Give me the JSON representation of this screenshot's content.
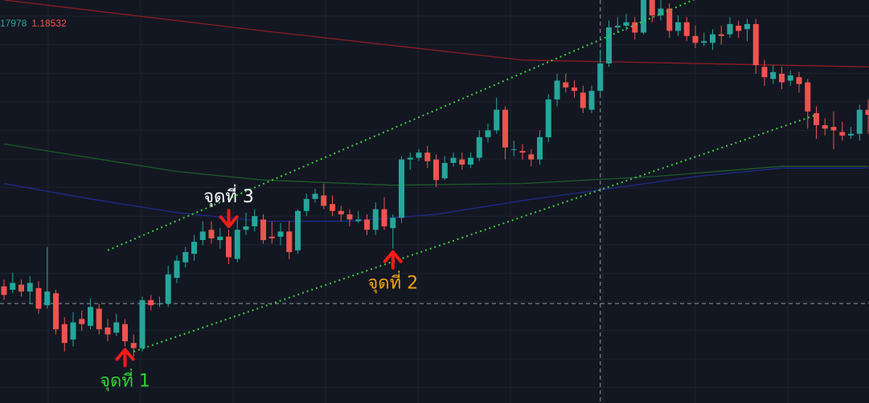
{
  "legend": {
    "value_a": "17978",
    "value_b": "1.18532"
  },
  "colors": {
    "background": "#131722",
    "grid": "#1f2330",
    "up": "#26a69a",
    "down": "#ef5350",
    "ma_red": "#8b1d24",
    "ma_green": "#1c5b2a",
    "ma_blue": "#1f2a8c",
    "trendline": "#3fcc3f",
    "crosshair": "#9598a1",
    "arrow": "#ff1a1a"
  },
  "annotations": [
    {
      "text": "จุดที่ 1",
      "color": "#2fd22f",
      "candle": 14,
      "at": "low",
      "dir": "up"
    },
    {
      "text": "จุดที่ 2",
      "color": "#f2a114",
      "candle": 45,
      "at": "low",
      "dir": "up"
    },
    {
      "text": "จุดที่ 3",
      "color": "#ffffff",
      "candle": 26,
      "at": "high",
      "dir": "down"
    }
  ],
  "chart_data": {
    "type": "candlestick",
    "grid": true,
    "crosshair": {
      "candle": 69,
      "price": 1.1778
    },
    "y_range": [
      1.172,
      1.1955
    ],
    "candles": [
      [
        1.1788,
        1.1783,
        1.1792,
        1.178
      ],
      [
        1.1786,
        1.179,
        1.1796,
        1.1784
      ],
      [
        1.1789,
        1.1785,
        1.1792,
        1.1782
      ],
      [
        1.1785,
        1.179,
        1.1794,
        1.1778
      ],
      [
        1.1787,
        1.1775,
        1.1791,
        1.1772
      ],
      [
        1.1777,
        1.1785,
        1.1811,
        1.1775
      ],
      [
        1.1784,
        1.1763,
        1.1786,
        1.176
      ],
      [
        1.1766,
        1.1755,
        1.177,
        1.175
      ],
      [
        1.1757,
        1.1767,
        1.1773,
        1.1753
      ],
      [
        1.1769,
        1.1766,
        1.1774,
        1.1762
      ],
      [
        1.1765,
        1.1776,
        1.1781,
        1.1763
      ],
      [
        1.1775,
        1.1763,
        1.1778,
        1.176
      ],
      [
        1.1764,
        1.176,
        1.1769,
        1.1756
      ],
      [
        1.1761,
        1.1767,
        1.1772,
        1.1759
      ],
      [
        1.1766,
        1.1756,
        1.1769,
        1.1753
      ],
      [
        1.1755,
        1.1752,
        1.176,
        1.1747
      ],
      [
        1.1752,
        1.178,
        1.1782,
        1.175
      ],
      [
        1.178,
        1.1777,
        1.1783,
        1.1774
      ],
      [
        1.1778,
        1.1778,
        1.1782,
        1.1776
      ],
      [
        1.1778,
        1.1795,
        1.18,
        1.1776
      ],
      [
        1.1793,
        1.1803,
        1.1806,
        1.179
      ],
      [
        1.1802,
        1.1808,
        1.1811,
        1.1799
      ],
      [
        1.1807,
        1.1814,
        1.1818,
        1.1803
      ],
      [
        1.1815,
        1.182,
        1.1826,
        1.1812
      ],
      [
        1.1821,
        1.1816,
        1.1826,
        1.1813
      ],
      [
        1.1815,
        1.1817,
        1.1822,
        1.181
      ],
      [
        1.1817,
        1.1805,
        1.1821,
        1.1801
      ],
      [
        1.1804,
        1.1821,
        1.1827,
        1.1802
      ],
      [
        1.1821,
        1.1823,
        1.1831,
        1.1818
      ],
      [
        1.1823,
        1.1829,
        1.1833,
        1.182
      ],
      [
        1.1827,
        1.1815,
        1.183,
        1.1813
      ],
      [
        1.1817,
        1.1816,
        1.1826,
        1.1813
      ],
      [
        1.1817,
        1.182,
        1.1825,
        1.1812
      ],
      [
        1.182,
        1.1808,
        1.1826,
        1.1804
      ],
      [
        1.1809,
        1.1832,
        1.1833,
        1.1807
      ],
      [
        1.1832,
        1.1839,
        1.1842,
        1.1829
      ],
      [
        1.1839,
        1.1842,
        1.1845,
        1.1837
      ],
      [
        1.1841,
        1.1835,
        1.1848,
        1.1833
      ],
      [
        1.1836,
        1.1832,
        1.1841,
        1.1829
      ],
      [
        1.1832,
        1.183,
        1.1835,
        1.1826
      ],
      [
        1.183,
        1.1827,
        1.1833,
        1.1823
      ],
      [
        1.1826,
        1.1827,
        1.1832,
        1.1825
      ],
      [
        1.1827,
        1.1821,
        1.183,
        1.1818
      ],
      [
        1.1821,
        1.1833,
        1.1837,
        1.1818
      ],
      [
        1.1833,
        1.1823,
        1.184,
        1.1821
      ],
      [
        1.1822,
        1.1828,
        1.183,
        1.181
      ],
      [
        1.1828,
        1.1862,
        1.1864,
        1.1825
      ],
      [
        1.1862,
        1.1863,
        1.1866,
        1.1856
      ],
      [
        1.1863,
        1.1866,
        1.1868,
        1.1861
      ],
      [
        1.1866,
        1.1861,
        1.187,
        1.1857
      ],
      [
        1.1862,
        1.185,
        1.1865,
        1.1846
      ],
      [
        1.1851,
        1.186,
        1.1864,
        1.185
      ],
      [
        1.186,
        1.1863,
        1.1866,
        1.1858
      ],
      [
        1.1862,
        1.1859,
        1.1866,
        1.1856
      ],
      [
        1.1859,
        1.1863,
        1.1866,
        1.1857
      ],
      [
        1.1863,
        1.1875,
        1.1879,
        1.1861
      ],
      [
        1.1875,
        1.1879,
        1.1883,
        1.1872
      ],
      [
        1.1879,
        1.1891,
        1.1898,
        1.1877
      ],
      [
        1.1891,
        1.1869,
        1.1893,
        1.1862
      ],
      [
        1.1868,
        1.1868,
        1.1873,
        1.1864
      ],
      [
        1.1867,
        1.1866,
        1.1871,
        1.1862
      ],
      [
        1.1865,
        1.1862,
        1.1868,
        1.1858
      ],
      [
        1.1862,
        1.1875,
        1.1879,
        1.1859
      ],
      [
        1.1875,
        1.1897,
        1.19,
        1.1872
      ],
      [
        1.1897,
        1.1908,
        1.1912,
        1.1893
      ],
      [
        1.1907,
        1.1904,
        1.1912,
        1.1901
      ],
      [
        1.1904,
        1.1902,
        1.1908,
        1.1898
      ],
      [
        1.1901,
        1.1892,
        1.1905,
        1.1889
      ],
      [
        1.1891,
        1.1902,
        1.1905,
        1.1889
      ],
      [
        1.1902,
        1.1918,
        1.1926,
        1.19
      ],
      [
        1.1918,
        1.1939,
        1.1943,
        1.1916
      ],
      [
        1.1939,
        1.194,
        1.1945,
        1.1936
      ],
      [
        1.194,
        1.1942,
        1.1947,
        1.1937
      ],
      [
        1.1942,
        1.1936,
        1.1945,
        1.1932
      ],
      [
        1.1936,
        1.1955,
        1.1958,
        1.1935
      ],
      [
        1.1955,
        1.1946,
        1.1957,
        1.1942
      ],
      [
        1.1946,
        1.195,
        1.1955,
        1.1943
      ],
      [
        1.195,
        1.1937,
        1.1953,
        1.1933
      ],
      [
        1.1937,
        1.1942,
        1.1946,
        1.1934
      ],
      [
        1.1942,
        1.1934,
        1.1945,
        1.1931
      ],
      [
        1.1934,
        1.193,
        1.194,
        1.1927
      ],
      [
        1.193,
        1.1931,
        1.1936,
        1.1928
      ],
      [
        1.193,
        1.1935,
        1.1938,
        1.1926
      ],
      [
        1.1935,
        1.1934,
        1.194,
        1.1929
      ],
      [
        1.1935,
        1.1941,
        1.1945,
        1.1933
      ],
      [
        1.194,
        1.1937,
        1.1943,
        1.1933
      ],
      [
        1.1938,
        1.1941,
        1.1944,
        1.1931
      ],
      [
        1.1941,
        1.1917,
        1.1944,
        1.1912
      ],
      [
        1.1916,
        1.191,
        1.192,
        1.1905
      ],
      [
        1.1909,
        1.1913,
        1.1917,
        1.1906
      ],
      [
        1.1912,
        1.1907,
        1.1916,
        1.1903
      ],
      [
        1.1908,
        1.1911,
        1.1914,
        1.1905
      ],
      [
        1.191,
        1.1906,
        1.1913,
        1.1901
      ],
      [
        1.1907,
        1.189,
        1.1909,
        1.188
      ],
      [
        1.1889,
        1.1882,
        1.1893,
        1.1874
      ],
      [
        1.1882,
        1.188,
        1.1886,
        1.1876
      ],
      [
        1.1881,
        1.1879,
        1.189,
        1.1868
      ],
      [
        1.1878,
        1.1876,
        1.1884,
        1.1873
      ],
      [
        1.1876,
        1.1877,
        1.1881,
        1.1874
      ],
      [
        1.1877,
        1.1891,
        1.1894,
        1.1873
      ],
      [
        1.1891,
        1.1888,
        1.1897,
        1.1877
      ],
      [
        1.1888,
        1.188,
        1.1892,
        1.1876
      ],
      [
        1.188,
        1.1887,
        1.189,
        1.1874
      ]
    ],
    "moving_averages": [
      {
        "color": "#8b1d24",
        "values": [
          [
            0,
            1.1955
          ],
          [
            30,
            1.1937
          ],
          [
            60,
            1.192
          ],
          [
            90,
            1.1917
          ],
          [
            100,
            1.1916
          ]
        ]
      },
      {
        "color": "#1c5b2a",
        "values": [
          [
            0,
            1.1871
          ],
          [
            10,
            1.1863
          ],
          [
            20,
            1.1855
          ],
          [
            30,
            1.185
          ],
          [
            45,
            1.1847
          ],
          [
            60,
            1.1848
          ],
          [
            75,
            1.1852
          ],
          [
            90,
            1.1858
          ],
          [
            100,
            1.1858
          ]
        ]
      },
      {
        "color": "#1f2a8c",
        "values": [
          [
            0,
            1.1848
          ],
          [
            10,
            1.1839
          ],
          [
            20,
            1.1831
          ],
          [
            30,
            1.1826
          ],
          [
            40,
            1.1826
          ],
          [
            50,
            1.183
          ],
          [
            60,
            1.1838
          ],
          [
            70,
            1.1845
          ],
          [
            80,
            1.1852
          ],
          [
            90,
            1.1857
          ],
          [
            100,
            1.1857
          ]
        ]
      }
    ],
    "trendlines": [
      {
        "from": [
          12,
          1.1809
        ],
        "to": [
          83,
          1.1962
        ],
        "style": "dotted"
      },
      {
        "from": [
          15,
          1.175
        ],
        "to": [
          94,
          1.1888
        ],
        "style": "dotted"
      }
    ]
  }
}
